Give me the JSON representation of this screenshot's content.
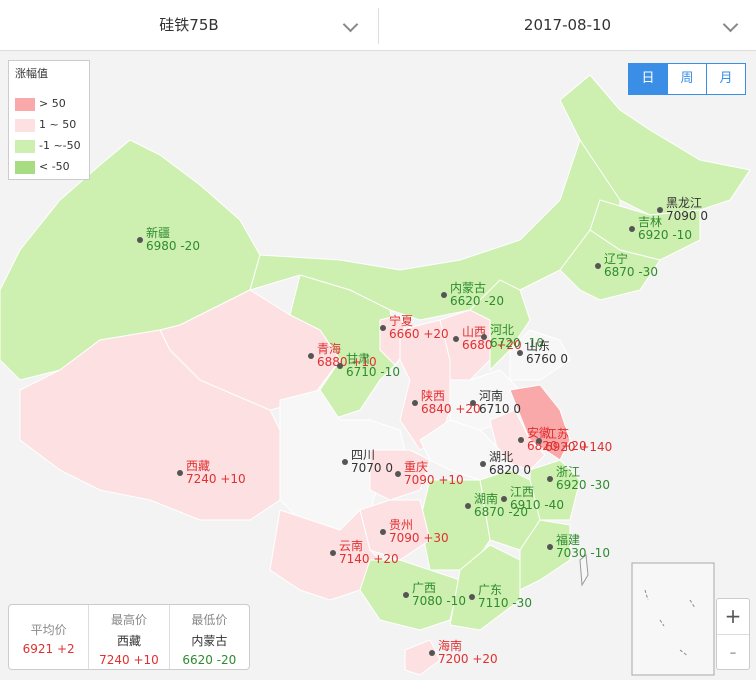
{
  "header": {
    "product": "硅铁75B",
    "date": "2017-08-10"
  },
  "legend": {
    "title": "涨幅值",
    "items": [
      "> 50",
      "1 ~ 50",
      "-1 ~-50",
      "< -50"
    ]
  },
  "period_buttons": [
    "日",
    "周",
    "月"
  ],
  "provinces": [
    {
      "name": "新疆",
      "value": "6980 -20",
      "color": "#2e8b2e"
    },
    {
      "name": "黑龙江",
      "value": "7090 0",
      "color": "#333333"
    },
    {
      "name": "吉林",
      "value": "6920 -10",
      "color": "#2e8b2e"
    },
    {
      "name": "辽宁",
      "value": "6870 -30",
      "color": "#2e8b2e"
    },
    {
      "name": "内蒙古",
      "value": "6620 -20",
      "color": "#2e8b2e"
    },
    {
      "name": "宁夏",
      "value": "6660 +20",
      "color": "#e03030"
    },
    {
      "name": "山西",
      "value": "6680 +20",
      "color": "#e03030"
    },
    {
      "name": "河北",
      "value": "6720 -10",
      "color": "#2e8b2e"
    },
    {
      "name": "山东",
      "value": "6760 0",
      "color": "#333333"
    },
    {
      "name": "青海",
      "value": "6880 +10",
      "color": "#e03030"
    },
    {
      "name": "甘肃",
      "value": "6710 -10",
      "color": "#2e8b2e"
    },
    {
      "name": "陕西",
      "value": "6840 +20",
      "color": "#e03030"
    },
    {
      "name": "河南",
      "value": "6710 0",
      "color": "#333333"
    },
    {
      "name": "西藏",
      "value": "7240 +10",
      "color": "#e03030"
    },
    {
      "name": "四川",
      "value": "7070 0",
      "color": "#333333"
    },
    {
      "name": "重庆",
      "value": "7090 +10",
      "color": "#e03030"
    },
    {
      "name": "湖北",
      "value": "6820 0",
      "color": "#333333"
    },
    {
      "name": "安徽",
      "value": "6820 +20",
      "color": "#e03030"
    },
    {
      "name": "江苏",
      "value": "6920 +140",
      "color": "#e03030"
    },
    {
      "name": "浙江",
      "value": "6920 -30",
      "color": "#2e8b2e"
    },
    {
      "name": "湖南",
      "value": "6870 -20",
      "color": "#2e8b2e"
    },
    {
      "name": "江西",
      "value": "6910 -40",
      "color": "#2e8b2e"
    },
    {
      "name": "贵州",
      "value": "7090 +30",
      "color": "#e03030"
    },
    {
      "name": "云南",
      "value": "7140 +20",
      "color": "#e03030"
    },
    {
      "name": "福建",
      "value": "7030 -10",
      "color": "#2e8b2e"
    },
    {
      "name": "广西",
      "value": "7080 -10",
      "color": "#2e8b2e"
    },
    {
      "name": "广东",
      "value": "7110 -30",
      "color": "#2e8b2e"
    },
    {
      "name": "海南",
      "value": "7200 +20",
      "color": "#e03030"
    }
  ],
  "summary": [
    {
      "label": "平均价",
      "value": "6921 +2"
    },
    {
      "label": "最高价",
      "province": "西藏",
      "value": "7240 +10"
    },
    {
      "label": "最低价",
      "province": "内蒙古",
      "value": "6620 -20"
    }
  ],
  "zoom": [
    "+",
    "-"
  ]
}
